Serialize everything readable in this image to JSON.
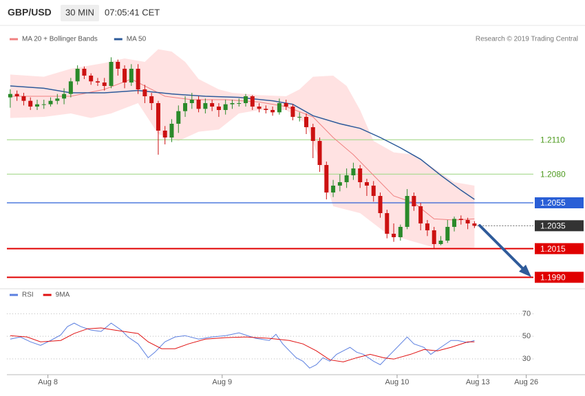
{
  "header": {
    "symbol": "GBP/USD",
    "interval": "30 MIN",
    "time": "07:05:41 CET"
  },
  "chart_data": [
    {
      "type": "candlestick",
      "attribution": "Research © 2019 Trading Central",
      "xlim": [
        -0.5,
        84
      ],
      "ylim": [
        1.1983,
        1.2226
      ],
      "xticks": [
        {
          "value": 5.6,
          "label": "Aug 8"
        },
        {
          "value": 31.5,
          "label": "Aug 9"
        },
        {
          "value": 57.5,
          "label": "Aug 10"
        },
        {
          "value": 69.5,
          "label": "Aug 13"
        },
        {
          "value": 76.7,
          "label": "Aug 26"
        }
      ],
      "up_color": "#2a8a2a",
      "down_color": "#cc1111",
      "open": [
        1.2147,
        1.215,
        1.2148,
        1.2144,
        1.2139,
        1.2141,
        1.2141,
        1.2144,
        1.2146,
        1.215,
        1.2161,
        1.2172,
        1.2166,
        1.2161,
        1.216,
        1.2157,
        1.2178,
        1.2172,
        1.216,
        1.2172,
        1.2154,
        1.2148,
        1.2142,
        1.2118,
        1.2112,
        1.2124,
        1.2135,
        1.2142,
        1.2145,
        1.2137,
        1.2142,
        1.2139,
        1.2136,
        1.2141,
        1.2142,
        1.2142,
        1.2148,
        1.2139,
        1.2137,
        1.2136,
        1.2134,
        1.2142,
        1.2139,
        1.213,
        1.213,
        1.2121,
        1.2109,
        1.2088,
        1.2064,
        1.207,
        1.2073,
        1.2079,
        1.2085,
        1.2073,
        1.207,
        1.2061,
        1.2046,
        1.2028,
        1.2025,
        1.2034,
        1.2061,
        1.2052,
        1.2037,
        1.2031,
        1.2019,
        1.2022,
        1.2034,
        1.2041,
        1.204,
        1.2037
      ],
      "high": [
        1.2154,
        1.2153,
        1.2151,
        1.2147,
        1.2145,
        1.2145,
        1.2147,
        1.215,
        1.2155,
        1.2164,
        1.2175,
        1.2174,
        1.2168,
        1.2164,
        1.2164,
        1.2182,
        1.218,
        1.2175,
        1.2176,
        1.2176,
        1.2158,
        1.2151,
        1.2144,
        1.2122,
        1.2128,
        1.214,
        1.2148,
        1.2151,
        1.2148,
        1.2146,
        1.2145,
        1.2142,
        1.2145,
        1.2145,
        1.2146,
        1.215,
        1.2149,
        1.2142,
        1.214,
        1.2139,
        1.2146,
        1.2145,
        1.2141,
        1.2134,
        1.2133,
        1.2124,
        1.2112,
        1.2091,
        1.2075,
        1.208,
        1.2085,
        1.209,
        1.2088,
        1.2076,
        1.2074,
        1.2064,
        1.2049,
        1.2037,
        1.2036,
        1.2067,
        1.2064,
        1.2055,
        1.204,
        1.2034,
        1.2026,
        1.204,
        1.2043,
        1.2044,
        1.2042,
        1.2039
      ],
      "low": [
        1.2138,
        1.2144,
        1.214,
        1.2136,
        1.2136,
        1.2137,
        1.2139,
        1.2141,
        1.2141,
        1.2147,
        1.2158,
        1.2163,
        1.2158,
        1.2157,
        1.2153,
        1.2155,
        1.2166,
        1.2155,
        1.2157,
        1.215,
        1.2142,
        1.2136,
        1.2097,
        1.2106,
        1.2108,
        1.2116,
        1.213,
        1.2137,
        1.2134,
        1.2133,
        1.2135,
        1.213,
        1.2132,
        1.2137,
        1.2139,
        1.2139,
        1.2136,
        1.2134,
        1.2133,
        1.2131,
        1.2132,
        1.2136,
        1.2127,
        1.2126,
        1.2115,
        1.2094,
        1.2082,
        1.2058,
        1.206,
        1.2065,
        1.2068,
        1.2075,
        1.2068,
        1.2061,
        1.2056,
        1.2042,
        1.2024,
        1.2021,
        1.2022,
        1.2032,
        1.2048,
        1.2031,
        1.2026,
        1.2015,
        1.2018,
        1.202,
        1.203,
        1.2036,
        1.2032,
        1.2033
      ],
      "close": [
        1.215,
        1.2148,
        1.2144,
        1.2139,
        1.2141,
        1.2141,
        1.2144,
        1.2146,
        1.215,
        1.2161,
        1.2172,
        1.2166,
        1.2161,
        1.216,
        1.2157,
        1.2178,
        1.2172,
        1.216,
        1.2172,
        1.2154,
        1.2148,
        1.2142,
        1.2118,
        1.2112,
        1.2124,
        1.2135,
        1.2142,
        1.2145,
        1.2137,
        1.2142,
        1.2139,
        1.2136,
        1.2141,
        1.2142,
        1.2142,
        1.2148,
        1.2139,
        1.2137,
        1.2136,
        1.2134,
        1.2142,
        1.2139,
        1.213,
        1.213,
        1.2121,
        1.2109,
        1.2088,
        1.2064,
        1.207,
        1.2073,
        1.2079,
        1.2085,
        1.2073,
        1.207,
        1.2061,
        1.2046,
        1.2028,
        1.2025,
        1.2034,
        1.2061,
        1.2052,
        1.2037,
        1.2031,
        1.2019,
        1.2022,
        1.2034,
        1.2041,
        1.204,
        1.2037,
        1.2035
      ],
      "bands": {
        "color": "#ffe2e2",
        "upper": {
          "x": [
            0,
            5,
            9,
            14,
            17,
            20,
            22,
            24,
            26,
            28,
            31,
            33,
            37,
            41,
            43,
            45,
            48,
            50,
            52,
            54,
            57,
            60,
            63,
            66,
            69
          ],
          "values": [
            1.2167,
            1.2165,
            1.2172,
            1.2177,
            1.2181,
            1.2178,
            1.2189,
            1.2187,
            1.2178,
            1.2163,
            1.2154,
            1.2151,
            1.2149,
            1.2148,
            1.2154,
            1.2165,
            1.2166,
            1.2157,
            1.2136,
            1.2109,
            1.2099,
            1.2097,
            1.2085,
            1.2073,
            1.207
          ]
        },
        "lower": {
          "x": [
            0,
            5,
            9,
            12,
            15,
            19,
            22,
            25,
            28,
            31,
            34,
            37,
            41,
            44,
            46,
            48,
            52,
            56,
            60,
            63,
            66,
            69
          ],
          "values": [
            1.2129,
            1.213,
            1.2133,
            1.2129,
            1.2133,
            1.2142,
            1.2115,
            1.2109,
            1.2117,
            1.2119,
            1.2133,
            1.2136,
            1.2136,
            1.2124,
            1.2091,
            1.2052,
            1.2046,
            1.2028,
            1.2021,
            1.2016,
            1.2015,
            1.2016
          ]
        }
      },
      "series": [
        {
          "name": "MA 20 + Bollinger Bands",
          "color": "#f08080",
          "x": [
            0,
            5,
            9,
            14,
            18,
            20,
            23,
            27,
            32,
            37,
            41,
            45,
            48,
            51,
            54,
            57,
            60,
            63,
            66,
            69
          ],
          "values": [
            1.2148,
            1.2148,
            1.2148,
            1.2154,
            1.2163,
            1.2157,
            1.2148,
            1.2145,
            1.2145,
            1.2143,
            1.2139,
            1.213,
            1.2112,
            1.2097,
            1.2079,
            1.2061,
            1.2055,
            1.2041,
            1.204,
            1.2041
          ]
        },
        {
          "name": "MA 50",
          "color": "#2c5a9a",
          "x": [
            0,
            5,
            9,
            14,
            19,
            24,
            29,
            34,
            39,
            42,
            45,
            49,
            52,
            55,
            58,
            61,
            64,
            67,
            69
          ],
          "values": [
            1.2157,
            1.2155,
            1.2151,
            1.2151,
            1.2153,
            1.215,
            1.2148,
            1.2147,
            1.2144,
            1.2141,
            1.2131,
            1.2124,
            1.212,
            1.2112,
            1.2103,
            1.2093,
            1.2079,
            1.2066,
            1.2058
          ]
        }
      ],
      "levels": [
        {
          "value": 1.211,
          "label": "1.2110",
          "color": "#a6d88c",
          "text_color": "#4d9a1e",
          "boxed": false,
          "dotted": false
        },
        {
          "value": 1.208,
          "label": "1.2080",
          "color": "#a6d88c",
          "text_color": "#4d9a1e",
          "boxed": false,
          "dotted": false
        },
        {
          "value": 1.2055,
          "label": "1.2055",
          "color": "#2a5fd6",
          "text_color": "#ffffff",
          "boxed": true,
          "dotted": false
        },
        {
          "value": 1.2035,
          "label": "1.2035",
          "color": "#333333",
          "text_color": "#ffffff",
          "boxed": true,
          "dotted": true
        },
        {
          "value": 1.2015,
          "label": "1.2015",
          "color": "#e00000",
          "text_color": "#ffffff",
          "boxed": true,
          "dotted": false
        },
        {
          "value": 1.199,
          "label": "1.1990",
          "color": "#e00000",
          "text_color": "#ffffff",
          "boxed": true,
          "dotted": false
        }
      ]
    },
    {
      "type": "line",
      "xlim": [
        -0.5,
        84
      ],
      "ylim": [
        19,
        80
      ],
      "yticks": [
        70,
        50,
        30
      ],
      "grid": true,
      "series": [
        {
          "name": "RSI",
          "color": "#5b7fe0",
          "x": [
            0,
            1.5,
            3,
            4.5,
            6,
            7.5,
            8.5,
            9.5,
            10.5,
            12,
            13.5,
            15,
            16.5,
            17.5,
            19,
            20.5,
            21.5,
            23,
            24.5,
            26,
            28,
            30,
            32,
            34,
            36.5,
            38.5,
            39.5,
            40.5,
            41.5,
            42.5,
            43.5,
            44.5,
            45.5,
            46.5,
            47.5,
            48.5,
            49.5,
            50.5,
            51.5,
            52.5,
            54,
            55,
            56,
            57,
            59,
            60,
            61.5,
            62.5,
            64,
            65.5,
            66.5,
            68,
            69
          ],
          "values": [
            47.5,
            49.4,
            45.1,
            42.0,
            46.3,
            51.2,
            58.6,
            61.7,
            58.6,
            55.5,
            54.3,
            61.7,
            55.5,
            49.4,
            43.3,
            31.0,
            35.9,
            45.1,
            49.4,
            50.6,
            47.5,
            49.4,
            50.6,
            53.1,
            48.2,
            46.3,
            51.8,
            43.3,
            37.1,
            31.0,
            27.9,
            21.8,
            24.8,
            31.0,
            27.9,
            34.0,
            37.1,
            40.2,
            35.9,
            34.0,
            27.9,
            24.8,
            31.0,
            37.1,
            49.4,
            43.3,
            40.2,
            34.0,
            40.2,
            46.3,
            46.3,
            44.5,
            46.3
          ]
        },
        {
          "name": "9MA",
          "color": "#e01010",
          "x": [
            0,
            2.5,
            4.5,
            7.5,
            9.5,
            11.5,
            13.5,
            15.5,
            19,
            20.5,
            22.5,
            24.5,
            26.5,
            29,
            32,
            35,
            38.5,
            41.5,
            43.5,
            45.5,
            47.5,
            49.5,
            51.5,
            53.5,
            55.5,
            57,
            59.5,
            61.5,
            63.5,
            65.5,
            68,
            69
          ],
          "values": [
            50.6,
            49.4,
            45.1,
            46.3,
            52.5,
            56.7,
            57.4,
            55.5,
            52.5,
            45.1,
            39.0,
            39.0,
            43.3,
            47.5,
            48.8,
            49.4,
            48.2,
            46.3,
            43.3,
            37.1,
            29.1,
            27.3,
            31.0,
            34.0,
            31.0,
            29.8,
            34.0,
            38.3,
            37.1,
            40.2,
            45.1,
            45.1
          ]
        }
      ]
    }
  ]
}
